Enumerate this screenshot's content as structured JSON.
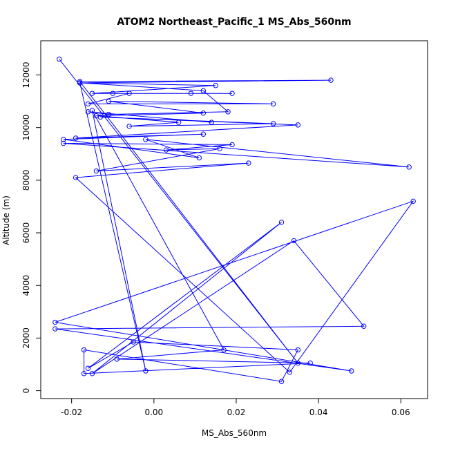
{
  "chart_data": {
    "type": "line",
    "title": "ATOM2 Northeast_Pacific_1 MS_Abs_560nm",
    "xlabel": "MS_Abs_560nm",
    "ylabel": "Altitude (m)",
    "xlim": [
      -0.0275,
      0.0665
    ],
    "ylim": [
      -300,
      13300
    ],
    "x_ticks": [
      -0.02,
      0.0,
      0.02,
      0.04,
      0.06
    ],
    "x_tick_labels": [
      "-0.02",
      "0.00",
      "0.02",
      "0.04",
      "0.06"
    ],
    "y_ticks": [
      0,
      2000,
      4000,
      6000,
      8000,
      10000,
      12000
    ],
    "y_tick_labels": [
      "0",
      "2000",
      "4000",
      "6000",
      "8000",
      "10000",
      "12000"
    ],
    "grid": false,
    "series_color": "#0000ff",
    "x": [
      -0.023,
      0.035,
      -0.018,
      0.043,
      -0.018,
      0.015,
      -0.015,
      0.019,
      -0.01,
      0.009,
      -0.006,
      -0.016,
      0.029,
      -0.011,
      0.012,
      -0.014,
      0.006,
      -0.006,
      0.029,
      -0.013,
      0.035,
      -0.019,
      0.012,
      -0.022,
      0.011,
      -0.002,
      0.062,
      -0.022,
      0.019,
      0.003,
      0.016,
      -0.014,
      0.023,
      -0.019,
      0.033,
      0.063,
      -0.024,
      0.048,
      -0.024,
      0.051,
      0.034,
      -0.015,
      0.031,
      -0.016,
      -0.005,
      0.035,
      0.031,
      -0.017,
      -0.017,
      0.038,
      -0.009,
      0.017,
      -0.015,
      -0.002,
      -0.018,
      0.012,
      0.018,
      -0.011,
      -0.016,
      0.014
    ],
    "y": [
      12600,
      1050,
      11750,
      11800,
      11700,
      11600,
      11300,
      11300,
      11300,
      11300,
      11300,
      10900,
      10900,
      11000,
      10550,
      10450,
      10200,
      10050,
      10150,
      10400,
      10100,
      9600,
      9750,
      9550,
      8850,
      9550,
      8500,
      9400,
      9350,
      9150,
      9200,
      8350,
      8650,
      8100,
      700,
      7200,
      2600,
      750,
      2350,
      2450,
      5700,
      650,
      6400,
      850,
      1850,
      1550,
      350,
      1550,
      650,
      1050,
      1200,
      1550,
      10650,
      750,
      11700,
      11400,
      10600,
      10500,
      10600,
      10200
    ]
  }
}
